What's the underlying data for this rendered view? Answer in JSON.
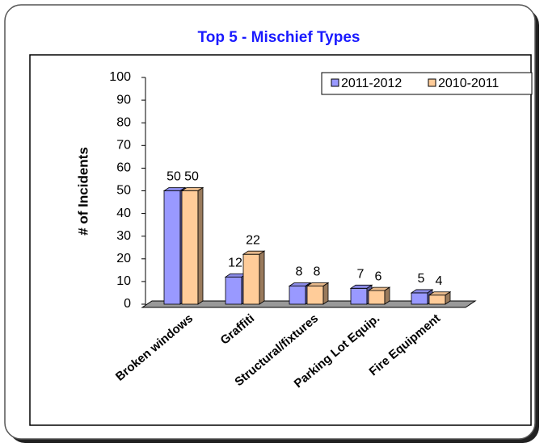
{
  "chart_data": {
    "type": "bar",
    "title": "Top 5 - Mischief Types",
    "ylabel": "# of Incidents",
    "categories": [
      "Broken windows",
      "Graffiti",
      "Structural/fixtures",
      "Parking Lot Equip.",
      "Fire Equipment"
    ],
    "series": [
      {
        "name": "2011-2012",
        "color": "#9999ff",
        "values": [
          50,
          12,
          8,
          7,
          5
        ]
      },
      {
        "name": "2010-2011",
        "color": "#ffcc99",
        "values": [
          50,
          22,
          8,
          6,
          4
        ]
      }
    ],
    "ylim": [
      0,
      100
    ],
    "yticks": [
      0,
      10,
      20,
      30,
      40,
      50,
      60,
      70,
      80,
      90,
      100
    ],
    "legend": "upper right"
  }
}
